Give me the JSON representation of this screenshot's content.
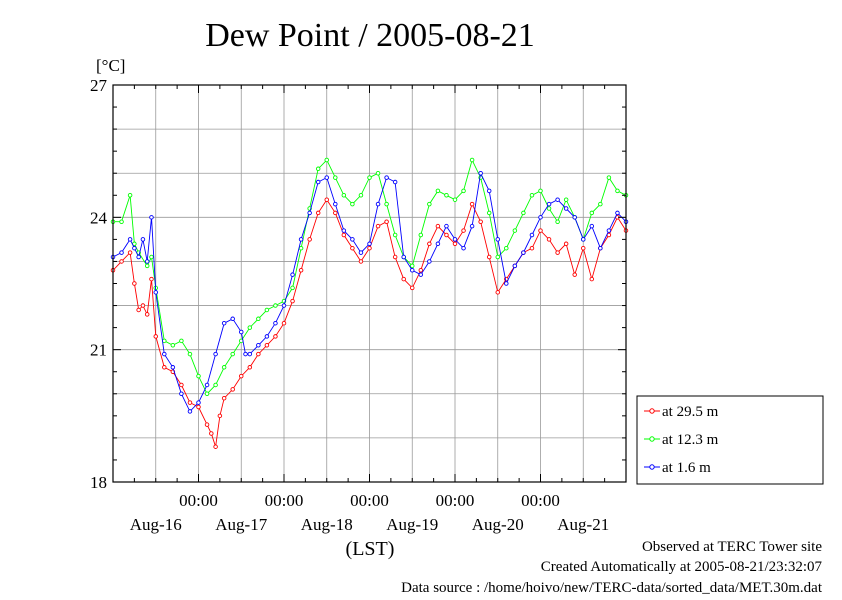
{
  "chart_data": {
    "type": "line",
    "title": "Dew Point / 2005-08-21",
    "ylabel": "[°C]",
    "xlabel": "(LST)",
    "ylim": [
      18,
      27
    ],
    "xlim": [
      0,
      6
    ],
    "y_ticks": [
      {
        "value": 18,
        "label": "18"
      },
      {
        "value": 21,
        "label": "21"
      },
      {
        "value": 24,
        "label": "24"
      },
      {
        "value": 27,
        "label": "27"
      }
    ],
    "time_ticks": [
      {
        "value": 1,
        "label": "00:00"
      },
      {
        "value": 2,
        "label": "00:00"
      },
      {
        "value": 3,
        "label": "00:00"
      },
      {
        "value": 4,
        "label": "00:00"
      },
      {
        "value": 5,
        "label": "00:00"
      }
    ],
    "day_labels": [
      {
        "value": 0.5,
        "label": "Aug-16"
      },
      {
        "value": 1.5,
        "label": "Aug-17"
      },
      {
        "value": 2.5,
        "label": "Aug-18"
      },
      {
        "value": 3.5,
        "label": "Aug-19"
      },
      {
        "value": 4.5,
        "label": "Aug-20"
      },
      {
        "value": 5.5,
        "label": "Aug-21"
      }
    ],
    "x_unit": "days from Aug-16 00:00 (LST)",
    "grid": true,
    "legend_position": "bottom-right, outside plot",
    "series": [
      {
        "name": "at 29.5 m",
        "color": "#ff0000",
        "x": [
          0.0,
          0.1,
          0.2,
          0.25,
          0.3,
          0.35,
          0.4,
          0.45,
          0.5,
          0.6,
          0.7,
          0.8,
          0.9,
          1.0,
          1.1,
          1.15,
          1.2,
          1.25,
          1.3,
          1.4,
          1.5,
          1.6,
          1.7,
          1.8,
          1.9,
          2.0,
          2.1,
          2.2,
          2.3,
          2.4,
          2.5,
          2.6,
          2.7,
          2.8,
          2.9,
          3.0,
          3.1,
          3.2,
          3.3,
          3.4,
          3.5,
          3.6,
          3.7,
          3.8,
          3.9,
          4.0,
          4.1,
          4.2,
          4.3,
          4.4,
          4.5,
          4.6,
          4.7,
          4.8,
          4.9,
          5.0,
          5.1,
          5.2,
          5.3,
          5.4,
          5.5,
          5.6,
          5.7,
          5.8,
          5.9,
          6.0
        ],
        "y": [
          22.8,
          23.0,
          23.2,
          22.5,
          21.9,
          22.0,
          21.8,
          22.6,
          21.3,
          20.6,
          20.5,
          20.2,
          19.8,
          19.7,
          19.3,
          19.1,
          18.8,
          19.5,
          19.9,
          20.1,
          20.4,
          20.6,
          20.9,
          21.1,
          21.3,
          21.6,
          22.1,
          22.8,
          23.5,
          24.1,
          24.4,
          24.1,
          23.6,
          23.3,
          23.0,
          23.3,
          23.8,
          23.9,
          23.1,
          22.6,
          22.4,
          22.8,
          23.4,
          23.8,
          23.6,
          23.4,
          23.7,
          24.3,
          23.9,
          23.1,
          22.3,
          22.6,
          22.9,
          23.2,
          23.3,
          23.7,
          23.5,
          23.2,
          23.4,
          22.7,
          23.3,
          22.6,
          23.3,
          23.6,
          24.0,
          23.7
        ]
      },
      {
        "name": "at 12.3 m",
        "color": "#00ff00",
        "x": [
          0.0,
          0.1,
          0.2,
          0.25,
          0.3,
          0.4,
          0.45,
          0.5,
          0.6,
          0.7,
          0.8,
          0.9,
          1.0,
          1.1,
          1.2,
          1.3,
          1.4,
          1.5,
          1.6,
          1.7,
          1.8,
          1.9,
          2.0,
          2.1,
          2.2,
          2.3,
          2.4,
          2.5,
          2.6,
          2.7,
          2.8,
          2.9,
          3.0,
          3.1,
          3.2,
          3.3,
          3.4,
          3.5,
          3.6,
          3.7,
          3.8,
          3.9,
          4.0,
          4.1,
          4.2,
          4.3,
          4.4,
          4.5,
          4.6,
          4.7,
          4.8,
          4.9,
          5.0,
          5.1,
          5.2,
          5.3,
          5.4,
          5.5,
          5.6,
          5.7,
          5.8,
          5.9,
          6.0
        ],
        "y": [
          23.9,
          23.9,
          24.5,
          23.4,
          23.2,
          22.9,
          23.1,
          22.4,
          21.2,
          21.1,
          21.2,
          20.9,
          20.4,
          20.0,
          20.2,
          20.6,
          20.9,
          21.2,
          21.5,
          21.7,
          21.9,
          22.0,
          22.1,
          22.4,
          23.3,
          24.2,
          25.1,
          25.3,
          24.9,
          24.5,
          24.3,
          24.5,
          24.9,
          25.0,
          24.3,
          23.6,
          23.1,
          22.9,
          23.6,
          24.3,
          24.6,
          24.5,
          24.4,
          24.6,
          25.3,
          24.9,
          24.1,
          23.1,
          23.3,
          23.7,
          24.1,
          24.5,
          24.6,
          24.2,
          23.9,
          24.4,
          24.0,
          23.5,
          24.1,
          24.3,
          24.9,
          24.6,
          24.5
        ]
      },
      {
        "name": "at 1.6 m",
        "color": "#0000ff",
        "x": [
          0.0,
          0.1,
          0.2,
          0.25,
          0.3,
          0.35,
          0.4,
          0.45,
          0.5,
          0.6,
          0.7,
          0.8,
          0.9,
          1.0,
          1.1,
          1.2,
          1.3,
          1.4,
          1.5,
          1.55,
          1.6,
          1.7,
          1.8,
          1.9,
          2.0,
          2.1,
          2.2,
          2.3,
          2.4,
          2.5,
          2.6,
          2.7,
          2.8,
          2.9,
          3.0,
          3.1,
          3.2,
          3.3,
          3.4,
          3.5,
          3.6,
          3.7,
          3.8,
          3.9,
          4.0,
          4.1,
          4.2,
          4.3,
          4.4,
          4.5,
          4.6,
          4.7,
          4.8,
          4.9,
          5.0,
          5.1,
          5.2,
          5.3,
          5.4,
          5.5,
          5.6,
          5.7,
          5.8,
          5.9,
          6.0
        ],
        "y": [
          23.1,
          23.2,
          23.5,
          23.3,
          23.1,
          23.5,
          23.0,
          24.0,
          22.3,
          20.9,
          20.6,
          20.0,
          19.6,
          19.8,
          20.2,
          20.9,
          21.6,
          21.7,
          21.4,
          20.9,
          20.9,
          21.1,
          21.3,
          21.6,
          22.0,
          22.7,
          23.5,
          24.1,
          24.8,
          24.9,
          24.3,
          23.7,
          23.5,
          23.2,
          23.4,
          24.3,
          24.9,
          24.8,
          23.1,
          22.8,
          22.7,
          23.0,
          23.4,
          23.8,
          23.5,
          23.3,
          23.8,
          25.0,
          24.6,
          23.5,
          22.5,
          22.9,
          23.2,
          23.6,
          24.0,
          24.3,
          24.4,
          24.2,
          24.0,
          23.5,
          23.8,
          23.3,
          23.7,
          24.1,
          23.9
        ]
      }
    ]
  },
  "footer": {
    "line1": "Observed at TERC Tower site",
    "line2": "Created Automatically at 2005-08-21/23:32:07",
    "line3": "Data source : /home/hoivo/new/TERC-data/sorted_data/MET.30m.dat"
  }
}
